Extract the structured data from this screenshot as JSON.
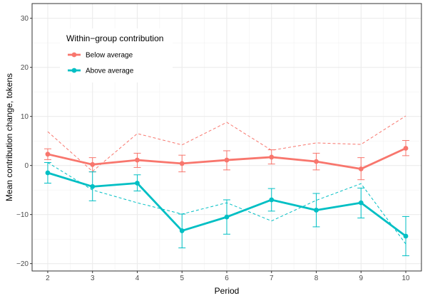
{
  "chart_data": {
    "type": "line",
    "xlabel": "Period",
    "ylabel": "Mean contribution change, tokens",
    "x": [
      2,
      3,
      4,
      5,
      6,
      7,
      8,
      9,
      10
    ],
    "xlim": [
      1.65,
      10.35
    ],
    "ylim": [
      -21.5,
      33
    ],
    "x_ticks": [
      "2",
      "3",
      "4",
      "5",
      "6",
      "7",
      "8",
      "9",
      "10"
    ],
    "y_ticks": [
      "−20",
      "−10",
      "0",
      "10",
      "20",
      "30"
    ],
    "y_tick_values": [
      -20,
      -10,
      0,
      10,
      20,
      30
    ],
    "grid": true,
    "legend": {
      "title": "Within−group contribution",
      "position": "top-left",
      "entries": [
        "Below average",
        "Above average"
      ]
    },
    "series": [
      {
        "name": "Below average",
        "color": "#F8766D",
        "values": [
          2.3,
          0.2,
          1.1,
          0.4,
          1.1,
          1.7,
          0.8,
          -0.7,
          3.5
        ],
        "error_low": [
          1.2,
          -1.3,
          -0.4,
          -1.3,
          -0.9,
          0.3,
          -0.9,
          -2.9,
          2.0
        ],
        "error_high": [
          3.4,
          1.6,
          2.5,
          2.1,
          3.0,
          3.2,
          2.5,
          1.6,
          5.1
        ],
        "dashed": [
          6.9,
          -1.2,
          6.5,
          4.2,
          8.8,
          3.1,
          4.6,
          4.3,
          10.1
        ]
      },
      {
        "name": "Above average",
        "color": "#00BFC4",
        "values": [
          -1.5,
          -4.3,
          -3.6,
          -13.3,
          -10.5,
          -7.0,
          -9.1,
          -7.6,
          -14.4
        ],
        "error_low": [
          -3.6,
          -7.2,
          -5.2,
          -16.8,
          -14.0,
          -9.3,
          -12.5,
          -10.7,
          -18.4
        ],
        "error_high": [
          0.6,
          -1.3,
          -1.9,
          -9.9,
          -7.0,
          -4.7,
          -5.7,
          -4.6,
          -10.4
        ],
        "dashed": [
          0.6,
          -5.0,
          -7.6,
          -9.9,
          -7.6,
          -11.3,
          -7.1,
          -3.7,
          -16.0
        ]
      }
    ]
  }
}
